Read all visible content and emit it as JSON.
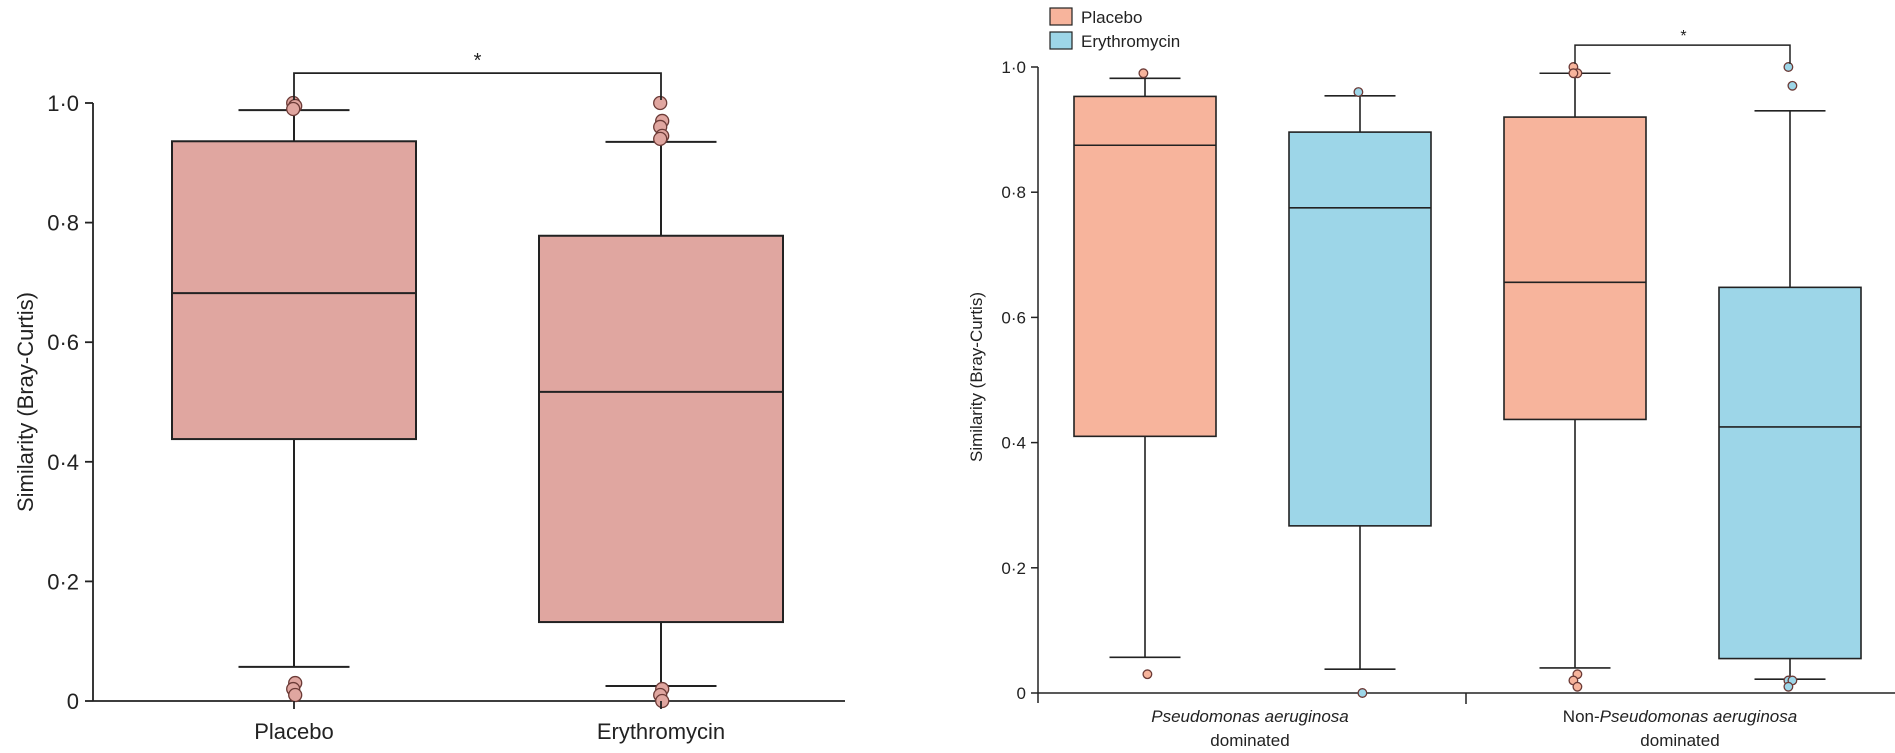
{
  "chart_data": [
    {
      "type": "box",
      "title": "",
      "xlabel": "",
      "ylabel": "Similarity (Bray-Curtis)",
      "ylim": [
        0,
        1.0
      ],
      "yticks": [
        "0",
        "0·2",
        "0·4",
        "0·6",
        "0·8",
        "1·0"
      ],
      "ytick_values": [
        0,
        0.2,
        0.4,
        0.6,
        0.8,
        1.0
      ],
      "categories": [
        "Placebo",
        "Erythromycin"
      ],
      "fill_color": "#e0a6a0",
      "boxes": [
        {
          "category": "Placebo",
          "min": 0.057,
          "q1": 0.438,
          "median": 0.682,
          "q3": 0.936,
          "max": 0.988,
          "outliers": [
            1.0,
            0.995,
            0.99,
            0.03,
            0.02,
            0.01
          ]
        },
        {
          "category": "Erythromycin",
          "min": 0.025,
          "q1": 0.132,
          "median": 0.517,
          "q3": 0.778,
          "max": 0.935,
          "outliers": [
            1.0,
            0.97,
            0.96,
            0.945,
            0.94,
            0.02,
            0.01,
            0.0
          ]
        }
      ],
      "significance": [
        {
          "between": [
            "Placebo",
            "Erythromycin"
          ],
          "label": "*",
          "y": 1.05
        }
      ]
    },
    {
      "type": "box",
      "title": "",
      "xlabel": "",
      "ylabel": "Similarity (Bray-Curtis)",
      "ylim": [
        0,
        1.0
      ],
      "yticks": [
        "0",
        "0·2",
        "0·4",
        "0·6",
        "0·8",
        "1·0"
      ],
      "ytick_values": [
        0,
        0.2,
        0.4,
        0.6,
        0.8,
        1.0
      ],
      "groups": [
        {
          "prefix": "",
          "italic": "Pseudomonas aeruginosa",
          "second_line": "dominated"
        },
        {
          "prefix": "Non-",
          "italic": "Pseudomonas aeruginosa",
          "second_line": "dominated"
        }
      ],
      "legend": {
        "placement": "top-left",
        "entries": [
          {
            "name": "Placebo",
            "color": "#f7b49c"
          },
          {
            "name": "Erythromycin",
            "color": "#9dd6e8"
          }
        ]
      },
      "series": [
        {
          "name": "Placebo",
          "color": "#f7b49c",
          "boxes": [
            {
              "group": 0,
              "min": 0.057,
              "q1": 0.41,
              "median": 0.875,
              "q3": 0.953,
              "max": 0.982,
              "outliers": [
                0.99,
                0.03
              ]
            },
            {
              "group": 1,
              "min": 0.04,
              "q1": 0.437,
              "median": 0.656,
              "q3": 0.92,
              "max": 0.99,
              "outliers": [
                1.0,
                0.99,
                0.99,
                0.03,
                0.02,
                0.01
              ]
            }
          ]
        },
        {
          "name": "Erythromycin",
          "color": "#9dd6e8",
          "boxes": [
            {
              "group": 0,
              "min": 0.038,
              "q1": 0.267,
              "median": 0.775,
              "q3": 0.896,
              "max": 0.954,
              "outliers": [
                0.96,
                0.0
              ]
            },
            {
              "group": 1,
              "min": 0.022,
              "q1": 0.055,
              "median": 0.425,
              "q3": 0.648,
              "max": 0.93,
              "outliers": [
                1.0,
                0.97,
                0.02,
                0.02,
                0.01
              ]
            }
          ]
        }
      ],
      "significance": [
        {
          "group": 1,
          "label": "*",
          "y": 1.035
        }
      ]
    }
  ]
}
